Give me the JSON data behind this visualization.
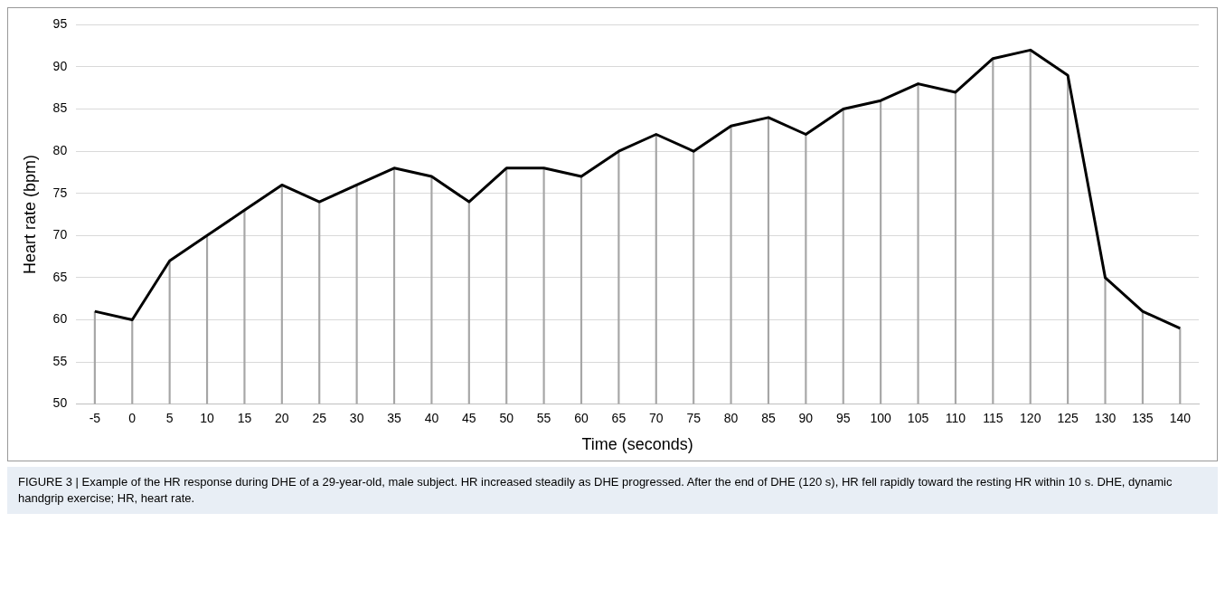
{
  "chart_data": {
    "type": "line",
    "xlabel": "Time (seconds)",
    "ylabel": "Heart rate (bpm)",
    "categories": [
      "-5",
      "0",
      "5",
      "10",
      "15",
      "20",
      "25",
      "30",
      "35",
      "40",
      "45",
      "50",
      "55",
      "60",
      "65",
      "70",
      "75",
      "80",
      "85",
      "90",
      "95",
      "100",
      "105",
      "110",
      "115",
      "120",
      "125",
      "130",
      "135",
      "140"
    ],
    "series": [
      {
        "type": "bar",
        "color": "#a6a6a6",
        "values": [
          61,
          60,
          67,
          70,
          73,
          76,
          74,
          76,
          78,
          77,
          74,
          78,
          78,
          77,
          80,
          82,
          80,
          83,
          84,
          82,
          85,
          86,
          88,
          87,
          91,
          92,
          89,
          65,
          61,
          59
        ]
      },
      {
        "color": "#000000",
        "values": [
          61,
          60,
          67,
          70,
          73,
          76,
          74,
          76,
          78,
          77,
          74,
          78,
          78,
          77,
          80,
          82,
          80,
          83,
          84,
          82,
          85,
          86,
          88,
          87,
          91,
          92,
          89,
          65,
          61,
          59
        ]
      }
    ],
    "ylim": [
      50,
      95
    ],
    "yticks": [
      50,
      55,
      60,
      65,
      70,
      75,
      80,
      85,
      90,
      95
    ],
    "grid": "y",
    "legend": false,
    "marker": "none",
    "line_style": "solid",
    "annotations": [
      "FIGURE 3 | Example of the HR response during DHE of a 29-year-old, male subject. HR increased steadily as DHE progressed. After the end of DHE (120 s), HR fell rapidly toward the resting HR within 10 s. DHE, dynamic handgrip exercise; HR, heart rate."
    ]
  }
}
